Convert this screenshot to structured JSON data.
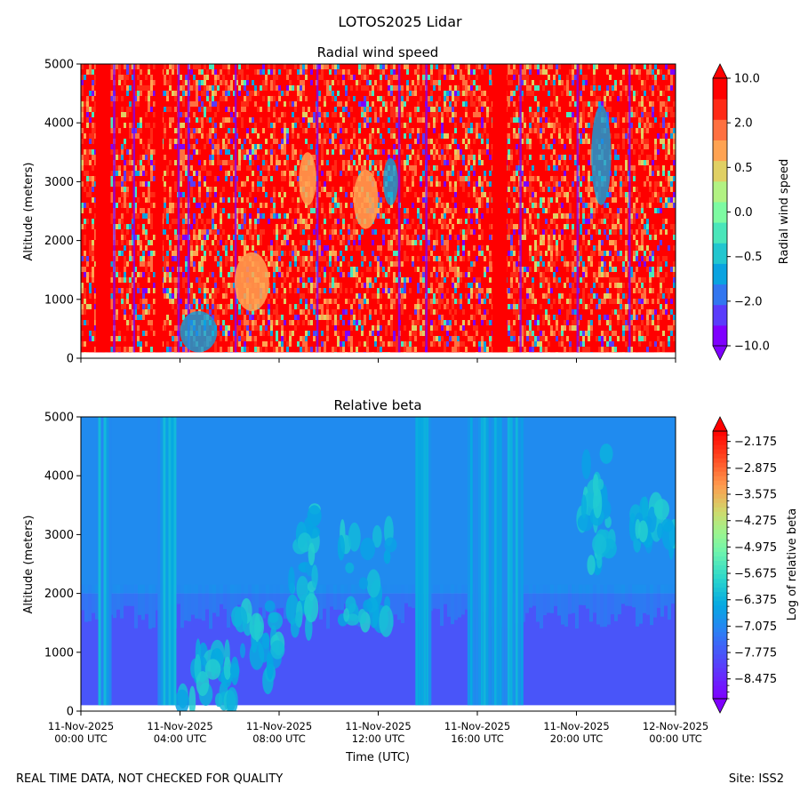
{
  "figure": {
    "suptitle": "LOTOS2025 Lidar",
    "footer_left": "REAL TIME DATA, NOT CHECKED FOR QUALITY",
    "footer_right": "Site: ISS2"
  },
  "chart_data": [
    {
      "type": "heatmap",
      "title": "Radial wind speed",
      "xlabel": "",
      "ylabel": "Altitude (meters)",
      "x_range_hours": [
        0,
        24
      ],
      "ylim": [
        0,
        5000
      ],
      "yticks": [
        "0",
        "1000",
        "2000",
        "3000",
        "4000",
        "5000"
      ],
      "x_tick_hours": [
        0,
        4,
        8,
        12,
        16,
        20,
        24
      ],
      "x_tick_labels_shown": false,
      "colorbar": {
        "label": "Radial wind speed",
        "levels": [
          -10.0,
          -5.0,
          -2.0,
          -1.0,
          -0.5,
          -0.2,
          0.0,
          0.2,
          0.5,
          1.0,
          2.0,
          5.0,
          10.0
        ],
        "tick_labels": [
          "−10.0",
          "−2.0",
          "−0.5",
          "0.0",
          "0.5",
          "2.0",
          "10.0"
        ],
        "colors": [
          "#7f00ff",
          "#5a3cfb",
          "#3276f0",
          "#0aa3e0",
          "#22c6cf",
          "#4ae6ba",
          "#7dfba2",
          "#b2f283",
          "#e0d064",
          "#ffa352",
          "#ff7040",
          "#ff2a16",
          "#ff0000"
        ],
        "extend": "both"
      },
      "features": {
        "dominant": "red (|v| > 5 m/s) speckle with vertical streaks",
        "solid_red_columns_hours": [
          [
            0.6,
            1.2
          ],
          [
            3.0,
            3.3
          ],
          [
            16.6,
            17.2
          ]
        ],
        "purple_streaks_hours": [
          1.3,
          2.1,
          3.9,
          4.3,
          6.2,
          9.5,
          12.8,
          13.9,
          17.7,
          20.0,
          22.1
        ],
        "orange_blobs": [
          {
            "hours": [
              8.8,
              9.5
            ],
            "alt": [
              2600,
              3500
            ]
          },
          {
            "hours": [
              11.0,
              12.0
            ],
            "alt": [
              2200,
              3200
            ]
          },
          {
            "hours": [
              6.2,
              7.6
            ],
            "alt": [
              800,
              1800
            ]
          }
        ],
        "blue_patches": [
          {
            "hours": [
              4.0,
              5.5
            ],
            "alt": [
              100,
              800
            ]
          },
          {
            "hours": [
              12.2,
              12.8
            ],
            "alt": [
              2600,
              3400
            ]
          },
          {
            "hours": [
              20.6,
              21.4
            ],
            "alt": [
              2600,
              4300
            ]
          }
        ]
      }
    },
    {
      "type": "heatmap",
      "title": "Relative beta",
      "xlabel": "Time (UTC)",
      "ylabel": "Altitude (meters)",
      "x_range_hours": [
        0,
        24
      ],
      "ylim": [
        0,
        5000
      ],
      "yticks": [
        "0",
        "1000",
        "2000",
        "3000",
        "4000",
        "5000"
      ],
      "x_tick_hours": [
        0,
        4,
        8,
        12,
        16,
        20,
        24
      ],
      "x_tick_labels": [
        [
          "11-Nov-2025",
          "00:00 UTC"
        ],
        [
          "11-Nov-2025",
          "04:00 UTC"
        ],
        [
          "11-Nov-2025",
          "08:00 UTC"
        ],
        [
          "11-Nov-2025",
          "12:00 UTC"
        ],
        [
          "11-Nov-2025",
          "16:00 UTC"
        ],
        [
          "11-Nov-2025",
          "20:00 UTC"
        ],
        [
          "12-Nov-2025",
          "00:00 UTC"
        ]
      ],
      "colorbar": {
        "label": "Log of relative beta",
        "range": [
          -9.0,
          -1.9
        ],
        "tick_values": [
          -2.175,
          -2.875,
          -3.575,
          -4.275,
          -4.975,
          -5.675,
          -6.375,
          -7.075,
          -7.775,
          -8.475
        ],
        "tick_labels": [
          "−2.175",
          "−2.875",
          "−3.575",
          "−4.275",
          "−4.975",
          "−5.675",
          "−6.375",
          "−7.075",
          "−7.775",
          "−8.475"
        ],
        "extend": "both"
      },
      "features": {
        "background_upper": -7.0,
        "background_lower": -7.8,
        "lower_layer_top_alt": 2000,
        "enhanced_columns_hours": [
          [
            0.7,
            1.2
          ],
          [
            3.1,
            3.8
          ],
          [
            13.5,
            14.1
          ],
          [
            15.6,
            17.8
          ]
        ],
        "aerosol_plumes": [
          {
            "hours": [
              4.0,
              6.2
            ],
            "alt": [
              100,
              1000
            ]
          },
          {
            "hours": [
              6.2,
              8.2
            ],
            "alt": [
              500,
              1800
            ]
          },
          {
            "hours": [
              8.5,
              9.5
            ],
            "alt": [
              1400,
              3500
            ]
          },
          {
            "hours": [
              10.5,
              12.5
            ],
            "alt": [
              1500,
              3100
            ]
          },
          {
            "hours": [
              20.2,
              21.5
            ],
            "alt": [
              2400,
              4400
            ]
          },
          {
            "hours": [
              22.2,
              24.0
            ],
            "alt": [
              2800,
              3500
            ]
          }
        ]
      }
    }
  ]
}
